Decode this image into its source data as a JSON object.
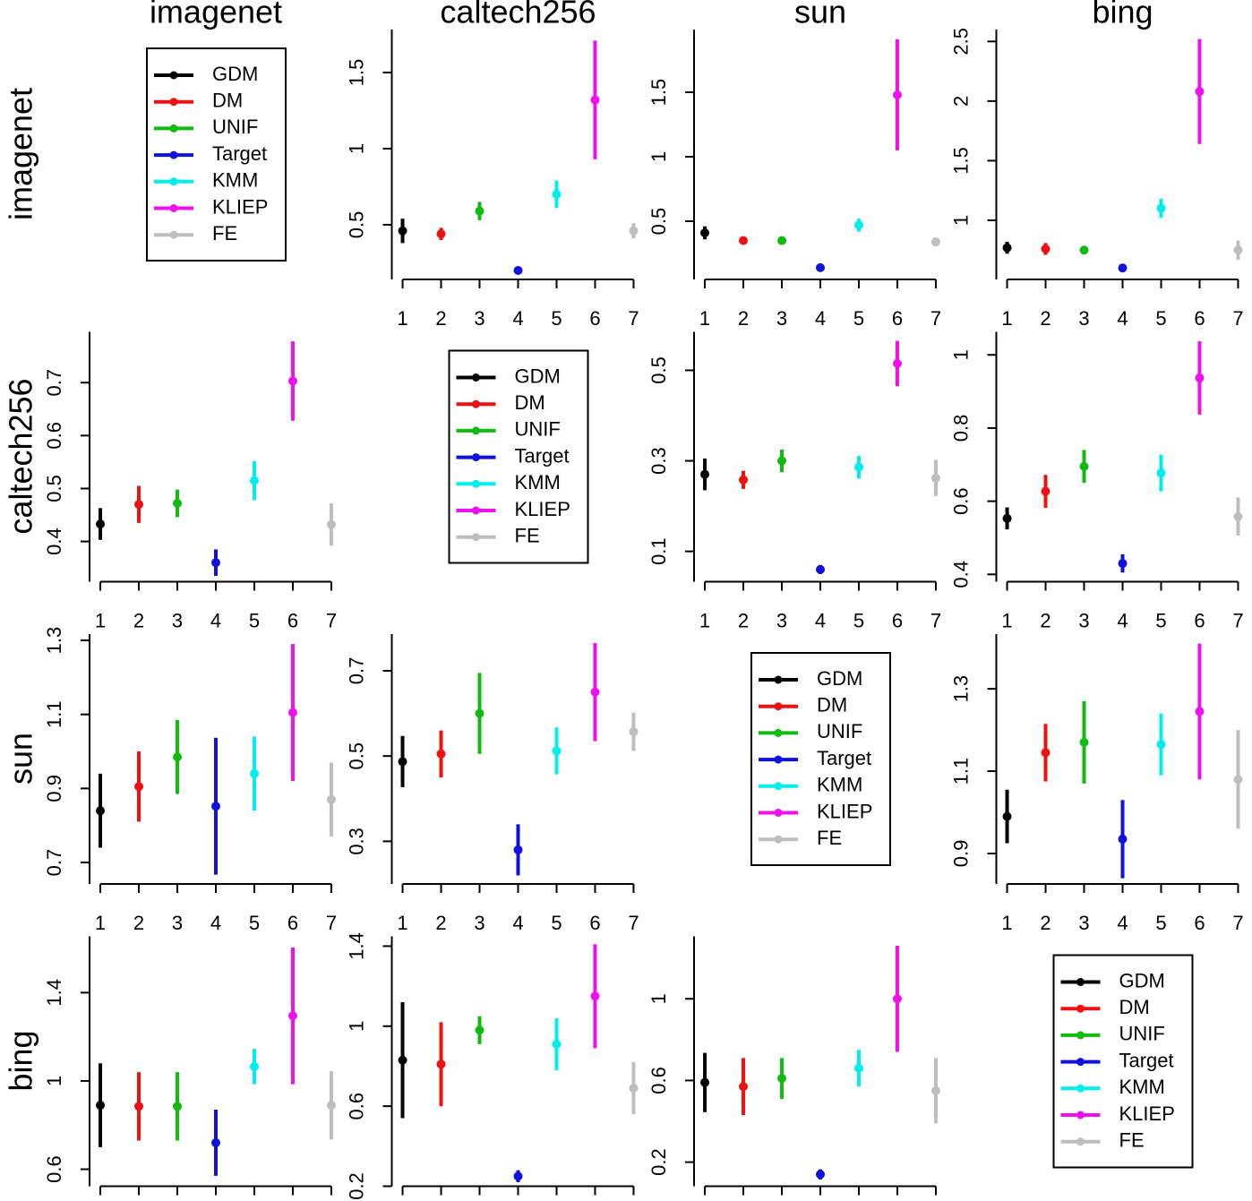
{
  "col_labels": [
    "imagenet",
    "caltech256",
    "sun",
    "bing"
  ],
  "row_labels": [
    "imagenet",
    "caltech256",
    "sun",
    "bing"
  ],
  "legend": {
    "names": [
      "GDM",
      "DM",
      "UNIF",
      "Target",
      "KMM",
      "KLIEP",
      "FE"
    ],
    "colors": [
      "#000000",
      "#ee1111",
      "#11bb11",
      "#1111dd",
      "#00eeee",
      "#ee11ee",
      "#bebebe"
    ]
  },
  "chart_data": [
    {
      "type": "errorbar",
      "x": [
        1,
        2,
        3,
        4,
        5,
        6,
        7
      ],
      "values": [
        0.46,
        0.44,
        0.59,
        0.2,
        0.7,
        1.32,
        0.46
      ],
      "errors": [
        0.08,
        0.04,
        0.06,
        0.02,
        0.09,
        0.39,
        0.05
      ],
      "xlim": [
        0.72,
        7.28
      ],
      "xticks": [
        1,
        2,
        3,
        4,
        5,
        6,
        7
      ],
      "ylim": [
        0.141,
        1.782
      ],
      "yticks": [
        0.5,
        1.0,
        1.5
      ]
    },
    {
      "type": "errorbar",
      "x": [
        1,
        2,
        3,
        4,
        5,
        6,
        7
      ],
      "values": [
        0.41,
        0.35,
        0.35,
        0.14,
        0.47,
        1.48,
        0.34
      ],
      "errors": [
        0.05,
        0.03,
        0.02,
        0.03,
        0.05,
        0.43,
        0.03
      ],
      "xlim": [
        0.72,
        7.28
      ],
      "xticks": [
        1,
        2,
        3,
        4,
        5,
        6,
        7
      ],
      "ylim": [
        0.049,
        1.986
      ],
      "yticks": [
        0.5,
        1.0,
        1.5
      ]
    },
    {
      "type": "errorbar",
      "x": [
        1,
        2,
        3,
        4,
        5,
        6,
        7
      ],
      "values": [
        0.77,
        0.76,
        0.75,
        0.6,
        1.1,
        2.08,
        0.75
      ],
      "errors": [
        0.05,
        0.05,
        0.03,
        0.02,
        0.08,
        0.44,
        0.08
      ],
      "xlim": [
        0.72,
        7.28
      ],
      "xticks": [
        1,
        2,
        3,
        4,
        5,
        6,
        7
      ],
      "ylim": [
        0.504,
        2.6
      ],
      "yticks": [
        1.0,
        1.5,
        2.0,
        2.5
      ]
    },
    {
      "type": "errorbar",
      "x": [
        1,
        2,
        3,
        4,
        5,
        6,
        7
      ],
      "values": [
        0.433,
        0.47,
        0.472,
        0.36,
        0.515,
        0.703,
        0.432
      ],
      "errors": [
        0.03,
        0.035,
        0.026,
        0.025,
        0.037,
        0.075,
        0.04
      ],
      "xlim": [
        0.72,
        7.28
      ],
      "xticks": [
        1,
        2,
        3,
        4,
        5,
        6,
        7
      ],
      "ylim": [
        0.324,
        0.796
      ],
      "yticks": [
        0.4,
        0.5,
        0.6,
        0.7
      ]
    },
    {
      "type": "errorbar",
      "x": [
        1,
        2,
        3,
        4,
        5,
        6,
        7
      ],
      "values": [
        0.27,
        0.258,
        0.3,
        0.06,
        0.286,
        0.515,
        0.262
      ],
      "errors": [
        0.035,
        0.02,
        0.025,
        0.01,
        0.025,
        0.05,
        0.04
      ],
      "xlim": [
        0.72,
        7.28
      ],
      "xticks": [
        1,
        2,
        3,
        4,
        5,
        6,
        7
      ],
      "ylim": [
        0.033,
        0.585
      ],
      "yticks": [
        0.1,
        0.3,
        0.5
      ]
    },
    {
      "type": "errorbar",
      "x": [
        1,
        2,
        3,
        4,
        5,
        6,
        7
      ],
      "values": [
        0.553,
        0.627,
        0.695,
        0.43,
        0.677,
        0.937,
        0.558
      ],
      "errors": [
        0.03,
        0.045,
        0.045,
        0.025,
        0.05,
        0.1,
        0.052
      ],
      "xlim": [
        0.72,
        7.28
      ],
      "xticks": [
        1,
        2,
        3,
        4,
        5,
        6,
        7
      ],
      "ylim": [
        0.38,
        1.063
      ],
      "yticks": [
        0.4,
        0.6,
        0.8,
        1.0
      ]
    },
    {
      "type": "errorbar",
      "x": [
        1,
        2,
        3,
        4,
        5,
        6,
        7
      ],
      "values": [
        0.84,
        0.905,
        0.985,
        0.852,
        0.94,
        1.105,
        0.87
      ],
      "errors": [
        0.1,
        0.095,
        0.1,
        0.185,
        0.1,
        0.185,
        0.1
      ],
      "xlim": [
        0.72,
        7.28
      ],
      "xticks": [
        1,
        2,
        3,
        4,
        5,
        6,
        7
      ],
      "ylim": [
        0.642,
        1.317
      ],
      "yticks": [
        0.7,
        0.9,
        1.1,
        1.3
      ]
    },
    {
      "type": "errorbar",
      "x": [
        1,
        2,
        3,
        4,
        5,
        6,
        7
      ],
      "values": [
        0.487,
        0.505,
        0.6,
        0.28,
        0.512,
        0.65,
        0.557
      ],
      "errors": [
        0.06,
        0.055,
        0.095,
        0.06,
        0.055,
        0.115,
        0.045
      ],
      "xlim": [
        0.72,
        7.28
      ],
      "xticks": [
        1,
        2,
        3,
        4,
        5,
        6,
        7
      ],
      "ylim": [
        0.2,
        0.786
      ],
      "yticks": [
        0.3,
        0.5,
        0.7
      ]
    },
    {
      "type": "errorbar",
      "x": [
        1,
        2,
        3,
        4,
        5,
        6,
        7
      ],
      "values": [
        0.99,
        1.145,
        1.17,
        0.935,
        1.165,
        1.245,
        1.08
      ],
      "errors": [
        0.065,
        0.07,
        0.1,
        0.095,
        0.075,
        0.165,
        0.12
      ],
      "xlim": [
        0.72,
        7.28
      ],
      "xticks": [
        1,
        2,
        3,
        4,
        5,
        6,
        7
      ],
      "ylim": [
        0.826,
        1.433
      ],
      "yticks": [
        0.9,
        1.1,
        1.3
      ]
    },
    {
      "type": "errorbar",
      "x": [
        1,
        2,
        3,
        4,
        5,
        6,
        7
      ],
      "values": [
        0.89,
        0.885,
        0.885,
        0.72,
        1.065,
        1.295,
        0.89
      ],
      "errors": [
        0.19,
        0.155,
        0.155,
        0.15,
        0.08,
        0.31,
        0.155
      ],
      "xlim": [
        0.72,
        7.28
      ],
      "xticks": [
        1,
        2,
        3,
        4,
        5,
        6,
        7
      ],
      "ylim": [
        0.523,
        1.655
      ],
      "yticks": [
        0.6,
        1.0,
        1.4
      ]
    },
    {
      "type": "errorbar",
      "x": [
        1,
        2,
        3,
        4,
        5,
        6,
        7
      ],
      "values": [
        0.83,
        0.81,
        0.98,
        0.25,
        0.91,
        1.15,
        0.69
      ],
      "errors": [
        0.29,
        0.21,
        0.07,
        0.03,
        0.13,
        0.26,
        0.13
      ],
      "xlim": [
        0.72,
        7.28
      ],
      "xticks": [
        1,
        2,
        3,
        4,
        5,
        6,
        7
      ],
      "ylim": [
        0.2,
        1.449
      ],
      "yticks": [
        0.2,
        0.6,
        1.0,
        1.4
      ]
    },
    {
      "type": "errorbar",
      "x": [
        1,
        2,
        3,
        4,
        5,
        6,
        7
      ],
      "values": [
        0.59,
        0.57,
        0.61,
        0.14,
        0.66,
        1.0,
        0.55
      ],
      "errors": [
        0.145,
        0.14,
        0.1,
        0.025,
        0.09,
        0.26,
        0.16
      ],
      "xlim": [
        0.72,
        7.28
      ],
      "xticks": [
        1,
        2,
        3,
        4,
        5,
        6,
        7
      ],
      "ylim": [
        0.082,
        1.306
      ],
      "yticks": [
        0.2,
        0.6,
        1.0
      ]
    }
  ]
}
